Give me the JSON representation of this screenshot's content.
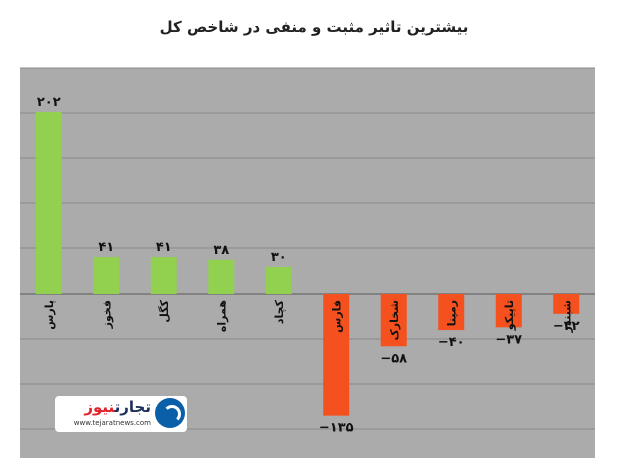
{
  "chart_data": {
    "type": "bar",
    "title": "بیشترین تاثیر مثبت و منفی در شاخص کل",
    "categories": [
      "پارس",
      "فخوز",
      "کگل",
      "همراه",
      "کچاد",
      "فارس",
      "شخارک",
      "رمپنا",
      "تاپیکو",
      "شبندر"
    ],
    "values": [
      202,
      41,
      41,
      38,
      30,
      -135,
      -58,
      -40,
      -37,
      -22
    ],
    "value_labels": [
      "۲۰۲",
      "۴۱",
      "۴۱",
      "۳۸",
      "۳۰",
      "−۱۳۵",
      "−۵۸",
      "−۴۰",
      "−۳۷",
      "−۲۲"
    ],
    "ylim": [
      -150,
      250
    ],
    "grid": true,
    "colors": {
      "positive": "#92d050",
      "negative": "#f4511e",
      "background": "#ababab",
      "gridline": "#888888"
    }
  },
  "watermark": {
    "name_part1": "تجارت",
    "name_part2": "نیوز",
    "url": "www.tejaratnews.com"
  }
}
